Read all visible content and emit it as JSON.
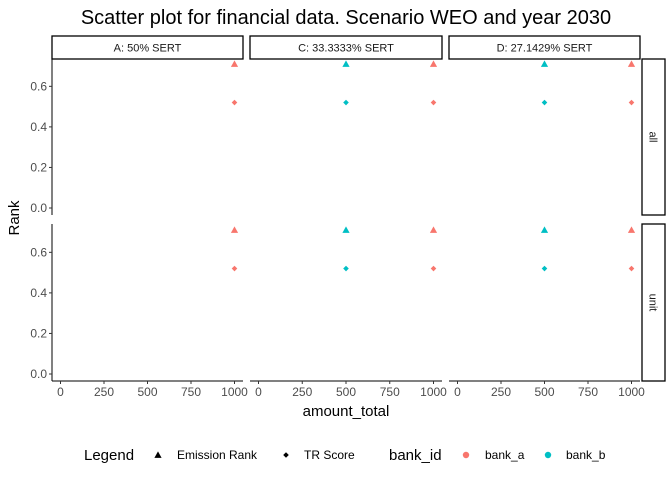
{
  "chart_data": {
    "type": "scatter",
    "title": "Scatter plot for financial data. Scenario WEO and year 2030",
    "xlabel": "amount_total",
    "ylabel": "Rank",
    "xlim": [
      0,
      1000
    ],
    "ylim": [
      0,
      0.72
    ],
    "x_ticks": [
      "0",
      "250",
      "500",
      "750",
      "1000"
    ],
    "y_ticks": [
      "0.0",
      "0.2",
      "0.4",
      "0.6"
    ],
    "grid": false,
    "legend_placement": "bottom",
    "facet_columns": [
      "A: 50% SERT",
      "C: 33.3333% SERT",
      "D: 27.1429% SERT"
    ],
    "facet_rows": [
      "all",
      "unit"
    ],
    "shape_legend": {
      "title": "Legend",
      "entries": [
        {
          "label": "Emission Rank",
          "shape": "triangle"
        },
        {
          "label": "TR Score",
          "shape": "diamond"
        }
      ]
    },
    "color_legend": {
      "title": "bank_id",
      "entries": [
        {
          "label": "bank_a",
          "color": "#F8766D"
        },
        {
          "label": "bank_b",
          "color": "#00BFC4"
        }
      ]
    },
    "panels": [
      {
        "column": "A: 50% SERT",
        "row": "all",
        "points": [
          {
            "bank_id": "bank_a",
            "metric": "Emission Rank",
            "x": 1000,
            "y": 0.71
          },
          {
            "bank_id": "bank_a",
            "metric": "TR Score",
            "x": 1000,
            "y": 0.52
          }
        ]
      },
      {
        "column": "C: 33.3333% SERT",
        "row": "all",
        "points": [
          {
            "bank_id": "bank_b",
            "metric": "Emission Rank",
            "x": 500,
            "y": 0.71
          },
          {
            "bank_id": "bank_b",
            "metric": "TR Score",
            "x": 500,
            "y": 0.52
          },
          {
            "bank_id": "bank_a",
            "metric": "Emission Rank",
            "x": 1000,
            "y": 0.71
          },
          {
            "bank_id": "bank_a",
            "metric": "TR Score",
            "x": 1000,
            "y": 0.52
          }
        ]
      },
      {
        "column": "D: 27.1429% SERT",
        "row": "all",
        "points": [
          {
            "bank_id": "bank_b",
            "metric": "Emission Rank",
            "x": 500,
            "y": 0.71
          },
          {
            "bank_id": "bank_b",
            "metric": "TR Score",
            "x": 500,
            "y": 0.52
          },
          {
            "bank_id": "bank_a",
            "metric": "Emission Rank",
            "x": 1000,
            "y": 0.71
          },
          {
            "bank_id": "bank_a",
            "metric": "TR Score",
            "x": 1000,
            "y": 0.52
          }
        ]
      },
      {
        "column": "A: 50% SERT",
        "row": "unit",
        "points": [
          {
            "bank_id": "bank_a",
            "metric": "Emission Rank",
            "x": 1000,
            "y": 0.71
          },
          {
            "bank_id": "bank_a",
            "metric": "TR Score",
            "x": 1000,
            "y": 0.52
          }
        ]
      },
      {
        "column": "C: 33.3333% SERT",
        "row": "unit",
        "points": [
          {
            "bank_id": "bank_b",
            "metric": "Emission Rank",
            "x": 500,
            "y": 0.71
          },
          {
            "bank_id": "bank_b",
            "metric": "TR Score",
            "x": 500,
            "y": 0.52
          },
          {
            "bank_id": "bank_a",
            "metric": "Emission Rank",
            "x": 1000,
            "y": 0.71
          },
          {
            "bank_id": "bank_a",
            "metric": "TR Score",
            "x": 1000,
            "y": 0.52
          }
        ]
      },
      {
        "column": "D: 27.1429% SERT",
        "row": "unit",
        "points": [
          {
            "bank_id": "bank_b",
            "metric": "Emission Rank",
            "x": 500,
            "y": 0.71
          },
          {
            "bank_id": "bank_b",
            "metric": "TR Score",
            "x": 500,
            "y": 0.52
          },
          {
            "bank_id": "bank_a",
            "metric": "Emission Rank",
            "x": 1000,
            "y": 0.71
          },
          {
            "bank_id": "bank_a",
            "metric": "TR Score",
            "x": 1000,
            "y": 0.52
          }
        ]
      }
    ]
  }
}
